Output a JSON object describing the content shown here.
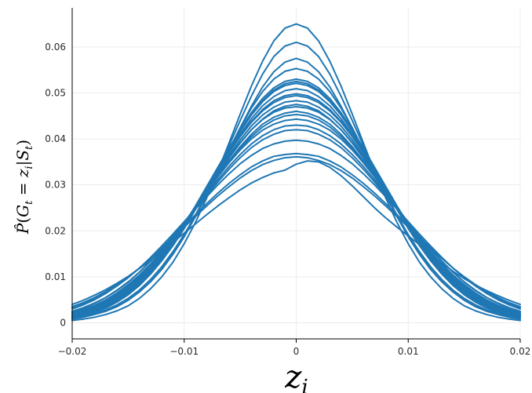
{
  "chart_data": {
    "type": "line",
    "title": "",
    "xlabel": "z_i",
    "ylabel": "P̂(G_t = z_i | S_t)",
    "xlim": [
      -0.02,
      0.02
    ],
    "ylim": [
      -0.0035,
      0.0685
    ],
    "x_ticks": [
      -0.02,
      -0.01,
      0,
      0.01,
      0.02
    ],
    "x_tick_labels": [
      "−0.02",
      "−0.01",
      "0",
      "0.01",
      "0.02"
    ],
    "y_ticks": [
      0,
      0.01,
      0.02,
      0.03,
      0.04,
      0.05,
      0.06
    ],
    "y_tick_labels": [
      "0",
      "0.01",
      "0.02",
      "0.03",
      "0.04",
      "0.05",
      "0.06"
    ],
    "grid": true,
    "legend": "none",
    "line_color": "#1f77b4",
    "x": [
      -0.02,
      -0.019,
      -0.018,
      -0.017,
      -0.016,
      -0.015,
      -0.014,
      -0.013,
      -0.012,
      -0.011,
      -0.01,
      -0.009,
      -0.008,
      -0.007,
      -0.006,
      -0.005,
      -0.004,
      -0.003,
      -0.002,
      -0.001,
      0,
      0.001,
      0.002,
      0.003,
      0.004,
      0.005,
      0.006,
      0.007,
      0.008,
      0.009,
      0.01,
      0.011,
      0.012,
      0.013,
      0.014,
      0.015,
      0.016,
      0.017,
      0.018,
      0.019,
      0.02
    ],
    "series": [
      {
        "values": [
          0.0014,
          0.0019,
          0.0027,
          0.0037,
          0.0051,
          0.0068,
          0.0089,
          0.0115,
          0.0145,
          0.0178,
          0.0214,
          0.0254,
          0.0296,
          0.0338,
          0.038,
          0.0419,
          0.0454,
          0.0483,
          0.0506,
          0.052,
          0.0525,
          0.052,
          0.0506,
          0.0483,
          0.0454,
          0.0419,
          0.038,
          0.0338,
          0.0296,
          0.0254,
          0.0214,
          0.0178,
          0.0145,
          0.0115,
          0.0089,
          0.0068,
          0.0051,
          0.0037,
          0.0027,
          0.0019,
          0.0014
        ]
      },
      {
        "values": [
          0.001,
          0.0014,
          0.002,
          0.0028,
          0.0039,
          0.0053,
          0.0071,
          0.0094,
          0.0121,
          0.0153,
          0.019,
          0.0231,
          0.0277,
          0.0325,
          0.0375,
          0.0424,
          0.0471,
          0.0513,
          0.0546,
          0.0567,
          0.0575,
          0.0567,
          0.0546,
          0.0513,
          0.0471,
          0.0424,
          0.0375,
          0.0325,
          0.0277,
          0.0231,
          0.019,
          0.0153,
          0.0121,
          0.0094,
          0.0071,
          0.0053,
          0.0039,
          0.0028,
          0.002,
          0.0014,
          0.001
        ]
      },
      {
        "values": [
          0.0008,
          0.0012,
          0.0018,
          0.0025,
          0.0035,
          0.0049,
          0.0067,
          0.0089,
          0.0116,
          0.0149,
          0.0187,
          0.0231,
          0.0279,
          0.0331,
          0.0385,
          0.044,
          0.0493,
          0.0541,
          0.0579,
          0.0602,
          0.061,
          0.0602,
          0.0579,
          0.0541,
          0.0493,
          0.044,
          0.0385,
          0.0331,
          0.0279,
          0.0231,
          0.0187,
          0.0149,
          0.0116,
          0.0089,
          0.0067,
          0.0049,
          0.0035,
          0.0025,
          0.0018,
          0.0012,
          0.0008
        ]
      },
      {
        "values": [
          0.0005,
          0.0008,
          0.0012,
          0.0018,
          0.0026,
          0.0037,
          0.0053,
          0.0074,
          0.01,
          0.0132,
          0.0172,
          0.0218,
          0.0271,
          0.0329,
          0.0391,
          0.0454,
          0.0515,
          0.0569,
          0.0613,
          0.0641,
          0.065,
          0.0641,
          0.0613,
          0.0569,
          0.0515,
          0.0454,
          0.0391,
          0.0329,
          0.0271,
          0.0218,
          0.0172,
          0.0132,
          0.01,
          0.0074,
          0.0053,
          0.0037,
          0.0026,
          0.0018,
          0.0012,
          0.0008,
          0.0005
        ]
      },
      {
        "values": [
          0.0018,
          0.0025,
          0.0034,
          0.0045,
          0.006,
          0.0078,
          0.0099,
          0.0124,
          0.0152,
          0.0183,
          0.0217,
          0.0252,
          0.0289,
          0.0325,
          0.036,
          0.0392,
          0.042,
          0.0442,
          0.0458,
          0.0467,
          0.047,
          0.0467,
          0.0458,
          0.0442,
          0.042,
          0.0392,
          0.036,
          0.0325,
          0.0289,
          0.0252,
          0.0217,
          0.0183,
          0.0152,
          0.0124,
          0.0099,
          0.0078,
          0.006,
          0.0045,
          0.0034,
          0.0025,
          0.0018
        ]
      },
      {
        "values": [
          0.0016,
          0.0022,
          0.003,
          0.0041,
          0.0055,
          0.0072,
          0.0093,
          0.0118,
          0.0147,
          0.018,
          0.0215,
          0.0253,
          0.0292,
          0.0332,
          0.037,
          0.0405,
          0.0436,
          0.0461,
          0.0479,
          0.049,
          0.0494,
          0.049,
          0.0479,
          0.0461,
          0.0436,
          0.0405,
          0.037,
          0.0332,
          0.0292,
          0.0253,
          0.0215,
          0.018,
          0.0147,
          0.0118,
          0.0093,
          0.0072,
          0.0055,
          0.0041,
          0.003,
          0.0022,
          0.0016
        ]
      },
      {
        "values": [
          0.002,
          0.0027,
          0.0036,
          0.0048,
          0.0063,
          0.0081,
          0.0102,
          0.0126,
          0.0154,
          0.0184,
          0.0216,
          0.025,
          0.0284,
          0.0318,
          0.035,
          0.038,
          0.0405,
          0.0426,
          0.0441,
          0.045,
          0.0453,
          0.045,
          0.0441,
          0.0426,
          0.0405,
          0.038,
          0.035,
          0.0318,
          0.0284,
          0.025,
          0.0216,
          0.0184,
          0.0154,
          0.0126,
          0.0102,
          0.0081,
          0.0063,
          0.0048,
          0.0036,
          0.0027,
          0.002
        ]
      },
      {
        "values": [
          0.0012,
          0.0017,
          0.0024,
          0.0034,
          0.0047,
          0.0063,
          0.0083,
          0.0108,
          0.0137,
          0.017,
          0.0207,
          0.0247,
          0.029,
          0.0333,
          0.0376,
          0.0416,
          0.0452,
          0.0481,
          0.0503,
          0.0516,
          0.0521,
          0.0516,
          0.0503,
          0.0481,
          0.0452,
          0.0416,
          0.0376,
          0.0333,
          0.029,
          0.0247,
          0.0207,
          0.017,
          0.0137,
          0.0108,
          0.0083,
          0.0063,
          0.0047,
          0.0034,
          0.0024,
          0.0017,
          0.0012
        ]
      },
      {
        "values": [
          0.0025,
          0.0033,
          0.0043,
          0.0055,
          0.0071,
          0.0089,
          0.011,
          0.0134,
          0.016,
          0.0188,
          0.0217,
          0.0247,
          0.0277,
          0.0306,
          0.0334,
          0.0359,
          0.0381,
          0.0398,
          0.041,
          0.0418,
          0.042,
          0.0418,
          0.041,
          0.0398,
          0.0381,
          0.0359,
          0.0334,
          0.0306,
          0.0277,
          0.0247,
          0.0217,
          0.0188,
          0.016,
          0.0134,
          0.011,
          0.0089,
          0.0071,
          0.0055,
          0.0043,
          0.0033,
          0.0025
        ]
      },
      {
        "values": [
          0.0035,
          0.0044,
          0.0055,
          0.0068,
          0.0083,
          0.01,
          0.0119,
          0.014,
          0.0162,
          0.0185,
          0.0208,
          0.0231,
          0.0254,
          0.0276,
          0.0296,
          0.0315,
          0.0331,
          0.0344,
          0.0353,
          0.0359,
          0.0361,
          0.0359,
          0.0353,
          0.0344,
          0.0331,
          0.0315,
          0.0296,
          0.0276,
          0.0254,
          0.0231,
          0.0208,
          0.0185,
          0.0162,
          0.014,
          0.0119,
          0.01,
          0.0083,
          0.0068,
          0.0055,
          0.0044,
          0.0035
        ]
      },
      {
        "values": [
          0.004,
          0.0049,
          0.006,
          0.0072,
          0.0086,
          0.0101,
          0.0118,
          0.0136,
          0.0155,
          0.0175,
          0.0195,
          0.0215,
          0.0235,
          0.0254,
          0.0272,
          0.0289,
          0.0304,
          0.0316,
          0.0326,
          0.0332,
          0.0345,
          0.0352,
          0.035,
          0.0338,
          0.032,
          0.0298,
          0.0274,
          0.025,
          0.0228,
          0.0208,
          0.0189,
          0.017,
          0.015,
          0.013,
          0.0112,
          0.0096,
          0.0082,
          0.007,
          0.0059,
          0.0049,
          0.004
        ]
      },
      {
        "values": [
          0.0014,
          0.002,
          0.0028,
          0.0039,
          0.0053,
          0.007,
          0.0091,
          0.0116,
          0.0145,
          0.0178,
          0.0213,
          0.0251,
          0.0291,
          0.0331,
          0.037,
          0.0406,
          0.0438,
          0.0464,
          0.0483,
          0.0494,
          0.0498,
          0.0494,
          0.0483,
          0.0464,
          0.0438,
          0.0406,
          0.037,
          0.0331,
          0.0291,
          0.0251,
          0.0213,
          0.0178,
          0.0145,
          0.0116,
          0.0091,
          0.007,
          0.0053,
          0.0039,
          0.0028,
          0.002,
          0.0014
        ]
      },
      {
        "values": [
          0.0018,
          0.0024,
          0.0032,
          0.0043,
          0.0057,
          0.0074,
          0.0095,
          0.0119,
          0.0147,
          0.0179,
          0.0212,
          0.0248,
          0.0285,
          0.0322,
          0.0358,
          0.0391,
          0.042,
          0.0443,
          0.0461,
          0.0471,
          0.0475,
          0.0471,
          0.0461,
          0.0443,
          0.042,
          0.0391,
          0.0358,
          0.0322,
          0.0285,
          0.0248,
          0.0212,
          0.0179,
          0.0147,
          0.0119,
          0.0095,
          0.0074,
          0.0057,
          0.0043,
          0.0032,
          0.0024,
          0.0018
        ]
      },
      {
        "values": [
          0.003,
          0.0039,
          0.005,
          0.0064,
          0.008,
          0.0098,
          0.0119,
          0.0142,
          0.0167,
          0.0193,
          0.022,
          0.0247,
          0.0274,
          0.03,
          0.0324,
          0.0346,
          0.0364,
          0.0379,
          0.0389,
          0.0395,
          0.0397,
          0.0395,
          0.0389,
          0.0379,
          0.0364,
          0.0346,
          0.0324,
          0.03,
          0.0274,
          0.0247,
          0.022,
          0.0193,
          0.0167,
          0.0142,
          0.0119,
          0.0098,
          0.008,
          0.0064,
          0.005,
          0.0039,
          0.003
        ]
      },
      {
        "values": [
          0.0011,
          0.0016,
          0.0023,
          0.0032,
          0.0045,
          0.0061,
          0.0081,
          0.0106,
          0.0135,
          0.0168,
          0.0205,
          0.0246,
          0.029,
          0.0334,
          0.0378,
          0.042,
          0.0457,
          0.0488,
          0.0511,
          0.0525,
          0.053,
          0.0525,
          0.0511,
          0.0488,
          0.0457,
          0.042,
          0.0378,
          0.0334,
          0.029,
          0.0246,
          0.0205,
          0.0168,
          0.0135,
          0.0106,
          0.0081,
          0.0061,
          0.0045,
          0.0032,
          0.0023,
          0.0016,
          0.0011
        ]
      },
      {
        "values": [
          0.0022,
          0.0029,
          0.0038,
          0.005,
          0.0065,
          0.0083,
          0.0104,
          0.0128,
          0.0155,
          0.0185,
          0.0217,
          0.025,
          0.0284,
          0.0317,
          0.0348,
          0.0376,
          0.04,
          0.0419,
          0.0432,
          0.044,
          0.0443,
          0.044,
          0.0432,
          0.0419,
          0.04,
          0.0376,
          0.0348,
          0.0317,
          0.0284,
          0.025,
          0.0217,
          0.0185,
          0.0155,
          0.0128,
          0.0104,
          0.0083,
          0.0065,
          0.005,
          0.0038,
          0.0029,
          0.0022
        ]
      },
      {
        "values": [
          0.0033,
          0.0042,
          0.0053,
          0.0066,
          0.0082,
          0.0099,
          0.0119,
          0.014,
          0.0163,
          0.0187,
          0.0211,
          0.0235,
          0.0259,
          0.0282,
          0.0303,
          0.0322,
          0.0339,
          0.0352,
          0.0362,
          0.0366,
          0.0368,
          0.0366,
          0.0362,
          0.0352,
          0.0339,
          0.0322,
          0.0303,
          0.0282,
          0.0259,
          0.0235,
          0.0211,
          0.0187,
          0.0163,
          0.014,
          0.0119,
          0.0099,
          0.0082,
          0.0066,
          0.0053,
          0.0042,
          0.0033
        ]
      },
      {
        "values": [
          0.0015,
          0.0021,
          0.0029,
          0.004,
          0.0054,
          0.0071,
          0.0092,
          0.0117,
          0.0146,
          0.0178,
          0.0213,
          0.025,
          0.0289,
          0.0327,
          0.0364,
          0.0398,
          0.0428,
          0.0452,
          0.0469,
          0.048,
          0.0483,
          0.048,
          0.0469,
          0.0452,
          0.0428,
          0.0398,
          0.0364,
          0.0327,
          0.0289,
          0.025,
          0.0213,
          0.0178,
          0.0146,
          0.0117,
          0.0092,
          0.0071,
          0.0054,
          0.004,
          0.0029,
          0.0021,
          0.0015
        ]
      },
      {
        "values": [
          0.0009,
          0.0013,
          0.0019,
          0.0027,
          0.0038,
          0.0053,
          0.0071,
          0.0094,
          0.0122,
          0.0155,
          0.0192,
          0.0234,
          0.028,
          0.0328,
          0.0377,
          0.0424,
          0.0467,
          0.0503,
          0.053,
          0.0547,
          0.0553,
          0.0547,
          0.053,
          0.0503,
          0.0467,
          0.0424,
          0.0377,
          0.0328,
          0.028,
          0.0234,
          0.0192,
          0.0155,
          0.0122,
          0.0094,
          0.0071,
          0.0053,
          0.0038,
          0.0027,
          0.0019,
          0.0013,
          0.0009
        ]
      },
      {
        "values": [
          0.0019,
          0.0026,
          0.0035,
          0.0046,
          0.0061,
          0.0079,
          0.01,
          0.0124,
          0.0152,
          0.0182,
          0.0215,
          0.0249,
          0.0284,
          0.0319,
          0.0352,
          0.0383,
          0.041,
          0.0432,
          0.0447,
          0.0456,
          0.046,
          0.0456,
          0.0447,
          0.0432,
          0.041,
          0.0383,
          0.0352,
          0.0319,
          0.0284,
          0.0249,
          0.0215,
          0.0182,
          0.0152,
          0.0124,
          0.01,
          0.0079,
          0.0061,
          0.0046,
          0.0035,
          0.0026,
          0.0019
        ]
      },
      {
        "values": [
          0.0013,
          0.0018,
          0.0026,
          0.0036,
          0.005,
          0.0066,
          0.0087,
          0.0112,
          0.0141,
          0.0174,
          0.021,
          0.0249,
          0.029,
          0.0331,
          0.0372,
          0.041,
          0.0444,
          0.0472,
          0.0492,
          0.0505,
          0.0509,
          0.0505,
          0.0492,
          0.0472,
          0.0444,
          0.041,
          0.0372,
          0.0331,
          0.029,
          0.0249,
          0.021,
          0.0174,
          0.0141,
          0.0112,
          0.0087,
          0.0066,
          0.005,
          0.0036,
          0.0026,
          0.0018,
          0.0013
        ]
      },
      {
        "values": [
          0.0024,
          0.0032,
          0.0042,
          0.0055,
          0.007,
          0.0088,
          0.011,
          0.0134,
          0.016,
          0.0189,
          0.0219,
          0.025,
          0.0281,
          0.0311,
          0.034,
          0.0366,
          0.0389,
          0.0407,
          0.042,
          0.0428,
          0.043,
          0.0428,
          0.042,
          0.0407,
          0.0389,
          0.0366,
          0.034,
          0.0311,
          0.0281,
          0.025,
          0.0219,
          0.0189,
          0.016,
          0.0134,
          0.011,
          0.0088,
          0.007,
          0.0055,
          0.0042,
          0.0032,
          0.0024
        ]
      }
    ]
  }
}
